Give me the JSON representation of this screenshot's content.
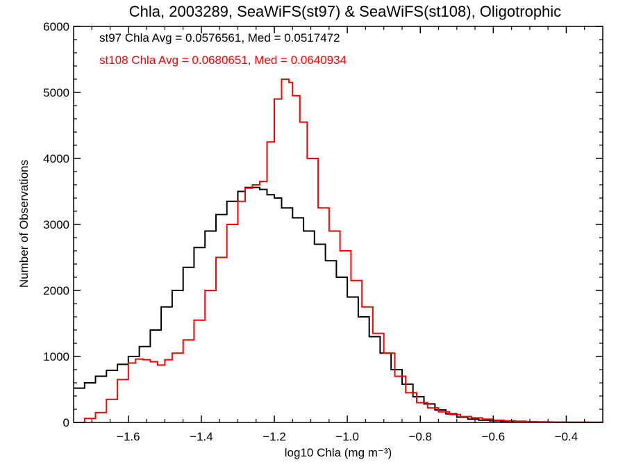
{
  "chart_data": {
    "type": "line",
    "title": "Chla, 2003289, SeaWiFS(st97) & SeaWiFS(st108), Oligotrophic",
    "xlabel": "log10 Chla (mg m⁻³)",
    "ylabel": "Number of Observations",
    "xlim": [
      -1.75,
      -0.3
    ],
    "ylim": [
      0,
      6000
    ],
    "xticks": [
      -1.6,
      -1.4,
      -1.2,
      -1.0,
      -0.8,
      -0.6,
      -0.4
    ],
    "xtick_labels": [
      "−1.6",
      "−1.4",
      "−1.2",
      "−1.0",
      "−0.8",
      "−0.6",
      "−0.4"
    ],
    "yticks": [
      0,
      1000,
      2000,
      3000,
      4000,
      5000,
      6000
    ],
    "ytick_labels": [
      "0",
      "1000",
      "2000",
      "3000",
      "4000",
      "5000",
      "6000"
    ],
    "grid": false,
    "annotations": [
      {
        "text": "st97 Chla Avg = 0.0576561, Med = 0.0517472",
        "color": "#000000"
      },
      {
        "text": "st108 Chla Avg = 0.0680651, Med = 0.0640934",
        "color": "#ff0000"
      }
    ],
    "series": [
      {
        "color": "#000000",
        "style": "step",
        "x": [
          -1.75,
          -1.72,
          -1.69,
          -1.66,
          -1.63,
          -1.6,
          -1.57,
          -1.54,
          -1.51,
          -1.48,
          -1.45,
          -1.42,
          -1.39,
          -1.36,
          -1.33,
          -1.3,
          -1.28,
          -1.26,
          -1.24,
          -1.22,
          -1.2,
          -1.18,
          -1.15,
          -1.12,
          -1.09,
          -1.06,
          -1.03,
          -1.0,
          -0.97,
          -0.94,
          -0.91,
          -0.88,
          -0.85,
          -0.82,
          -0.79,
          -0.76,
          -0.73,
          -0.7,
          -0.67,
          -0.64,
          -0.61,
          -0.58,
          -0.55,
          -0.52,
          -0.49,
          -0.46,
          -0.43,
          -0.4,
          -0.37,
          -0.34,
          -0.3
        ],
        "y": [
          520,
          600,
          700,
          790,
          880,
          1000,
          1150,
          1400,
          1750,
          2000,
          2350,
          2650,
          2900,
          3150,
          3350,
          3500,
          3560,
          3560,
          3530,
          3450,
          3400,
          3250,
          3100,
          2900,
          2700,
          2450,
          2200,
          1900,
          1600,
          1300,
          1050,
          800,
          580,
          390,
          280,
          190,
          130,
          80,
          50,
          35,
          25,
          18,
          12,
          8,
          6,
          5,
          4,
          3,
          2,
          1,
          0
        ]
      },
      {
        "color": "#ff0000",
        "style": "step",
        "x": [
          -1.75,
          -1.72,
          -1.69,
          -1.66,
          -1.63,
          -1.6,
          -1.58,
          -1.56,
          -1.54,
          -1.52,
          -1.5,
          -1.48,
          -1.45,
          -1.42,
          -1.39,
          -1.36,
          -1.33,
          -1.3,
          -1.28,
          -1.26,
          -1.24,
          -1.22,
          -1.2,
          -1.18,
          -1.17,
          -1.16,
          -1.15,
          -1.13,
          -1.11,
          -1.08,
          -1.05,
          -1.02,
          -0.99,
          -0.96,
          -0.93,
          -0.9,
          -0.87,
          -0.84,
          -0.81,
          -0.78,
          -0.75,
          -0.72,
          -0.69,
          -0.66,
          -0.63,
          -0.6,
          -0.57,
          -0.54,
          -0.51,
          -0.48,
          -0.44,
          -0.4,
          -0.36,
          -0.3
        ],
        "y": [
          0,
          60,
          150,
          350,
          650,
          900,
          960,
          950,
          920,
          870,
          950,
          1050,
          1250,
          1550,
          2000,
          2500,
          3000,
          3350,
          3550,
          3600,
          3650,
          4250,
          4900,
          5200,
          5200,
          5150,
          4950,
          4550,
          4000,
          3250,
          2900,
          2600,
          2150,
          1750,
          1350,
          1050,
          700,
          450,
          300,
          220,
          160,
          120,
          90,
          70,
          50,
          35,
          25,
          18,
          12,
          8,
          5,
          3,
          2,
          0
        ]
      }
    ]
  }
}
